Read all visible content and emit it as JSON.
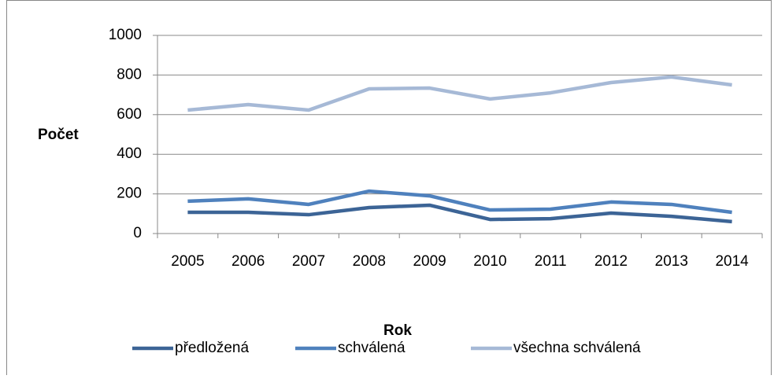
{
  "chart_data": {
    "type": "line",
    "x_label": "Rok",
    "y_label": "Počet",
    "categories": [
      "2005",
      "2006",
      "2007",
      "2008",
      "2009",
      "2010",
      "2011",
      "2012",
      "2013",
      "2014"
    ],
    "series": [
      {
        "name": "předložená",
        "color": "#3c6496",
        "values": [
          107,
          107,
          95,
          131,
          143,
          71,
          75,
          103,
          87,
          60
        ]
      },
      {
        "name": "schválená",
        "color": "#4f81bd",
        "values": [
          163,
          175,
          147,
          214,
          190,
          119,
          123,
          159,
          147,
          107
        ]
      },
      {
        "name": "všechna schválená",
        "color": "#a6b9d6",
        "values": [
          623,
          651,
          623,
          730,
          734,
          679,
          710,
          762,
          790,
          750
        ]
      }
    ],
    "ylim": [
      0,
      1000
    ],
    "yticks": [
      0,
      200,
      400,
      600,
      800,
      1000
    ],
    "grid": true,
    "legend": "bottom"
  }
}
